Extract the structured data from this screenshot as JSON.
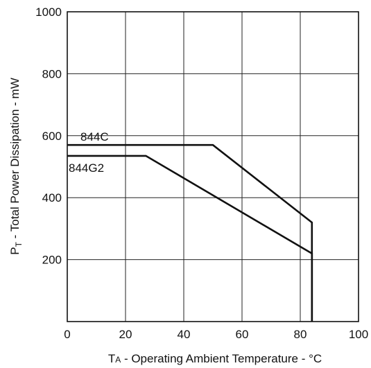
{
  "chart_data": {
    "type": "line",
    "xlabel": "T",
    "xlabel_sub": "A",
    "xlabel_rest": " - Operating Ambient Temperature - °C",
    "ylabel": "P",
    "ylabel_sub": "T",
    "ylabel_rest": " - Total Power Dissipation - mW",
    "xlim": [
      0,
      100
    ],
    "ylim": [
      0,
      1000
    ],
    "x_ticks": [
      0,
      20,
      40,
      60,
      80,
      100
    ],
    "y_ticks": [
      200,
      400,
      600,
      800,
      1000
    ],
    "grid": true,
    "series": [
      {
        "name": "844C",
        "points": [
          [
            0,
            570
          ],
          [
            50,
            570
          ],
          [
            84,
            320
          ],
          [
            84,
            0
          ]
        ]
      },
      {
        "name": "844G2",
        "points": [
          [
            0,
            535
          ],
          [
            27,
            535
          ],
          [
            84,
            220
          ],
          [
            84,
            0
          ]
        ]
      }
    ]
  }
}
